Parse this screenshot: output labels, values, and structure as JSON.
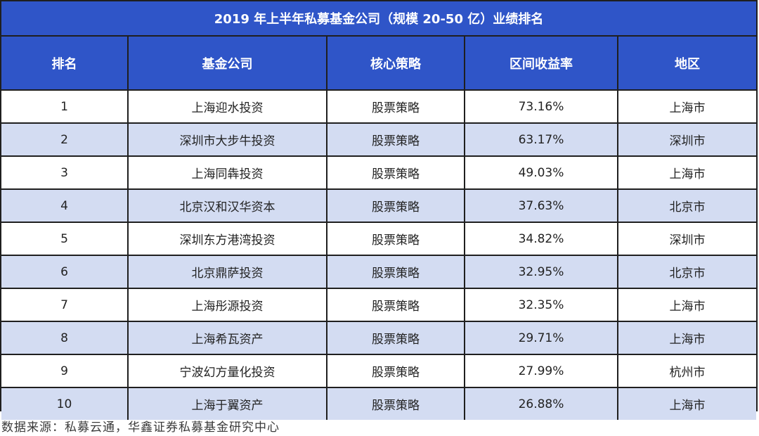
{
  "title": "2019 年上半年私募基金公司（规模 20-50 亿）业绩排名",
  "headers": [
    "排名",
    "基金公司",
    "核心策略",
    "区间收益率",
    "地区"
  ],
  "rows": [
    {
      "rank": "1",
      "company": "上海迎水投资",
      "strategy": "股票策略",
      "return": "73.16%",
      "region": "上海市"
    },
    {
      "rank": "2",
      "company": "深圳市大步牛投资",
      "strategy": "股票策略",
      "return": "63.17%",
      "region": "深圳市"
    },
    {
      "rank": "3",
      "company": "上海同犇投资",
      "strategy": "股票策略",
      "return": "49.03%",
      "region": "上海市"
    },
    {
      "rank": "4",
      "company": "北京汉和汉华资本",
      "strategy": "股票策略",
      "return": "37.63%",
      "region": "北京市"
    },
    {
      "rank": "5",
      "company": "深圳东方港湾投资",
      "strategy": "股票策略",
      "return": "34.82%",
      "region": "深圳市"
    },
    {
      "rank": "6",
      "company": "北京鼎萨投资",
      "strategy": "股票策略",
      "return": "32.95%",
      "region": "北京市"
    },
    {
      "rank": "7",
      "company": "上海彤源投资",
      "strategy": "股票策略",
      "return": "32.35%",
      "region": "上海市"
    },
    {
      "rank": "8",
      "company": "上海希瓦资产",
      "strategy": "股票策略",
      "return": "29.71%",
      "region": "上海市"
    },
    {
      "rank": "9",
      "company": "宁波幻方量化投资",
      "strategy": "股票策略",
      "return": "27.99%",
      "region": "杭州市"
    },
    {
      "rank": "10",
      "company": "上海于翼资产",
      "strategy": "股票策略",
      "return": "26.88%",
      "region": "上海市"
    }
  ],
  "source": "数据来源：私募云通，华鑫证券私募基金研究中心",
  "colors": {
    "header_bg": "#2f55c8",
    "row_alt_bg": "#d3dcf2",
    "border": "#1f1f1f"
  }
}
